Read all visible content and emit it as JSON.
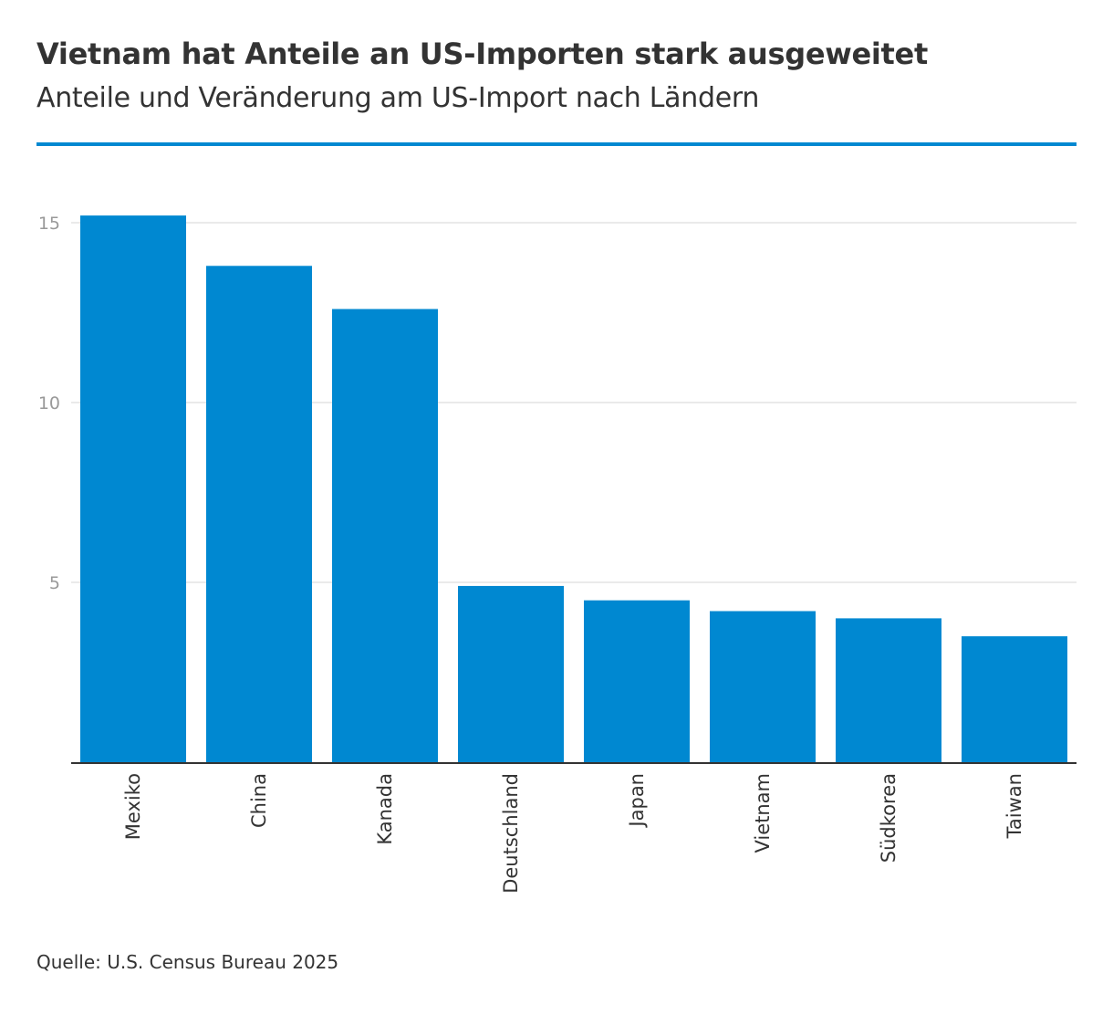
{
  "title": "Vietnam hat Anteile an US-Importen stark ausgeweitet",
  "subtitle": "Anteile und Veränderung am US-Import nach Ländern",
  "source": "Quelle: U.S. Census Bureau 2025",
  "colors": {
    "accent": "#0088d1",
    "bar": "#0088d1",
    "grid": "#e3e3e3",
    "axis": "#333333",
    "tick_text": "#999999",
    "text": "#333333"
  },
  "chart_data": {
    "type": "bar",
    "categories": [
      "Mexiko",
      "China",
      "Kanada",
      "Deutschland",
      "Japan",
      "Vietnam",
      "Südkorea",
      "Taiwan"
    ],
    "values": [
      15.2,
      13.8,
      12.6,
      4.9,
      4.5,
      4.2,
      4.0,
      3.5
    ],
    "yticks": [
      5,
      10,
      15
    ],
    "ylim": [
      0,
      16
    ],
    "grid": true,
    "xlabel": "",
    "ylabel": ""
  }
}
